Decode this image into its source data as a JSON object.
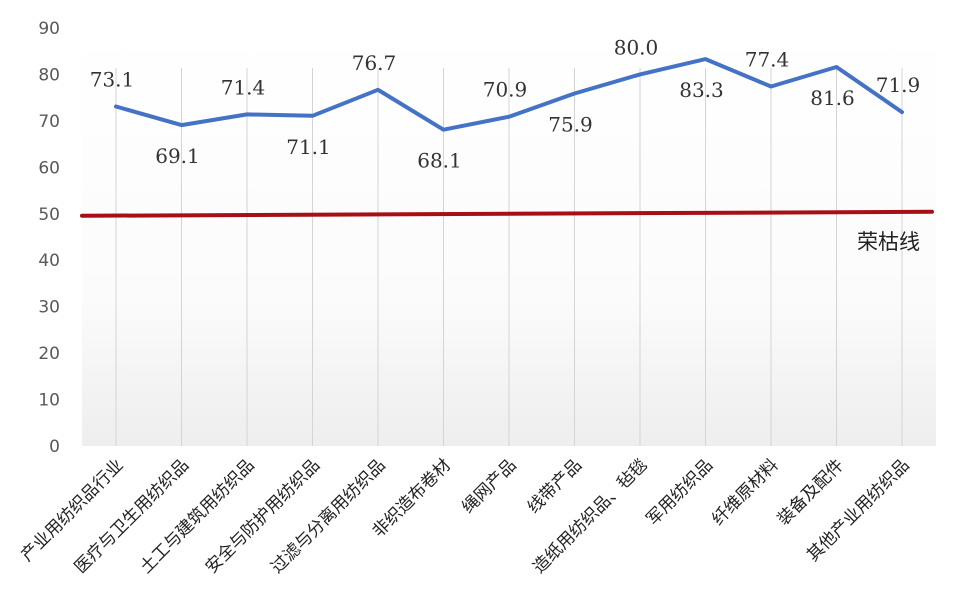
{
  "chart_data": {
    "type": "line",
    "categories": [
      "产业用纺织品行业",
      "医疗与卫生用纺织品",
      "土工与建筑用纺织品",
      "安全与防护用纺织品",
      "过滤与分离用纺织品",
      "非织造布卷材",
      "绳网产品",
      "线带产品",
      "造纸用纺织品、毡毯",
      "军用纺织品",
      "纤维原材料",
      "装备及配件",
      "其他产业用纺织品"
    ],
    "values": [
      73.1,
      69.1,
      71.4,
      71.1,
      76.7,
      68.1,
      70.9,
      75.9,
      80.0,
      83.3,
      77.4,
      81.6,
      71.9
    ],
    "data_labels": [
      "73.1",
      "69.1",
      "71.4",
      "71.1",
      "76.7",
      "68.1",
      "70.9",
      "75.9",
      "80.0",
      "83.3",
      "77.4",
      "81.6",
      "71.9"
    ],
    "label_positions": [
      "above",
      "below",
      "above",
      "below",
      "above",
      "below",
      "above",
      "below",
      "above",
      "below",
      "above",
      "below",
      "above"
    ],
    "ylim": [
      0,
      90
    ],
    "yticks": [
      "0",
      "10",
      "20",
      "30",
      "40",
      "50",
      "60",
      "70",
      "80",
      "90"
    ],
    "reference_line": {
      "value": 50,
      "label": "荣枯线",
      "color": "#a50f15"
    },
    "line_color": "#4472c4",
    "grid": "vertical",
    "title": "",
    "xlabel": "",
    "ylabel": ""
  }
}
